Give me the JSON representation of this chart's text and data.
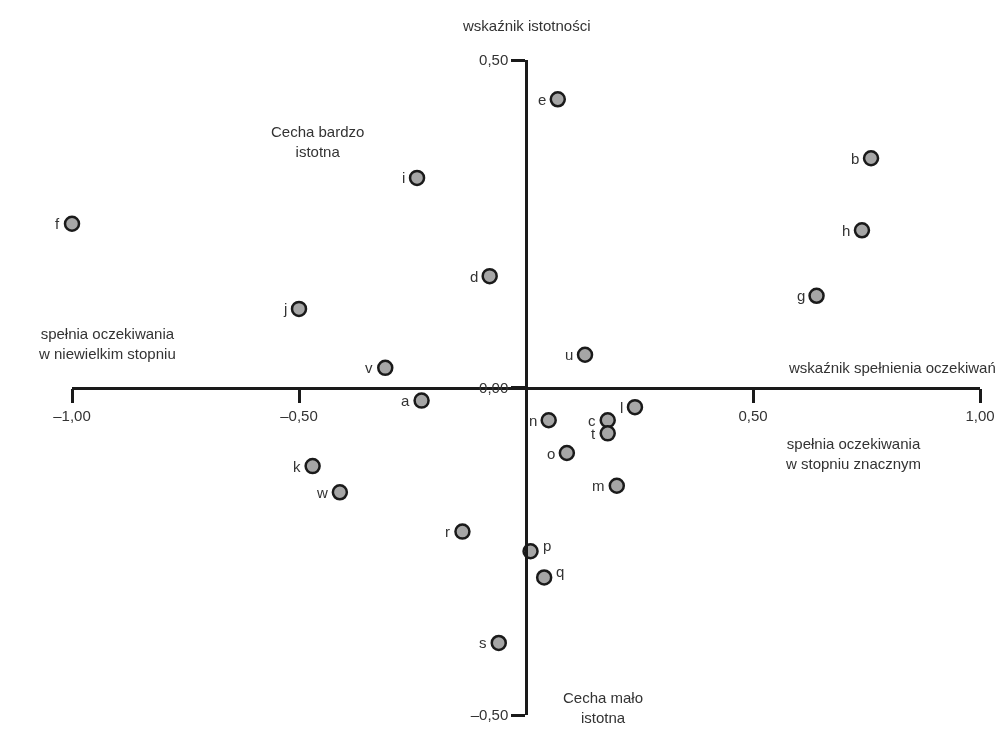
{
  "chart_data": {
    "type": "scatter",
    "xlabel": "wskaźnik spełnienia oczekiwań",
    "ylabel": "wskaźnik istotności",
    "annotations": [
      "Cecha bardzo\nistotna",
      "spełnia oczekiwania\nw niewielkim stopniu",
      "spełnia oczekiwania\nw stopniu znacznym",
      "Cecha mało\nistotna",
      {
        "text": "e",
        "x": 0.07,
        "y": 0.44
      },
      {
        "text": "b",
        "x": 0.76,
        "y": 0.35
      },
      {
        "text": "h",
        "x": 0.74,
        "y": 0.24
      },
      {
        "text": "g",
        "x": 0.64,
        "y": 0.14
      },
      {
        "text": "i",
        "x": -0.24,
        "y": 0.32
      },
      {
        "text": "f",
        "x": -1.0,
        "y": 0.25
      },
      {
        "text": "d",
        "x": -0.08,
        "y": 0.17
      },
      {
        "text": "j",
        "x": -0.5,
        "y": 0.12
      },
      {
        "text": "u",
        "x": 0.13,
        "y": 0.05
      },
      {
        "text": "v",
        "x": -0.31,
        "y": 0.03
      },
      {
        "text": "a",
        "x": -0.23,
        "y": -0.02
      },
      {
        "text": "n",
        "x": 0.05,
        "y": -0.05
      },
      {
        "text": "c",
        "x": 0.18,
        "y": -0.05
      },
      {
        "text": "l",
        "x": 0.24,
        "y": -0.03
      },
      {
        "text": "t",
        "x": 0.18,
        "y": -0.07
      },
      {
        "text": "o",
        "x": 0.09,
        "y": -0.1
      },
      {
        "text": "m",
        "x": 0.2,
        "y": -0.15
      },
      {
        "text": "k",
        "x": -0.47,
        "y": -0.12
      },
      {
        "text": "w",
        "x": -0.41,
        "y": -0.16
      },
      {
        "text": "r",
        "x": -0.14,
        "y": -0.22
      },
      {
        "text": "p",
        "x": 0.01,
        "y": -0.25
      },
      {
        "text": "q",
        "x": 0.04,
        "y": -0.29
      },
      {
        "text": "s",
        "x": -0.06,
        "y": -0.39
      }
    ],
    "xlim": [
      -1,
      1
    ],
    "ylim": [
      -0.5,
      0.5
    ],
    "xticks": [
      {
        "value": -1,
        "label": "–1,00"
      },
      {
        "value": -0.5,
        "label": "–0,50"
      },
      {
        "value": 0.5,
        "label": "0,50"
      },
      {
        "value": 1,
        "label": "1,00"
      }
    ],
    "yticks": [
      {
        "value": -0.5,
        "label": "–0,50"
      },
      {
        "value": 0,
        "label": "0,00"
      },
      {
        "value": 0.5,
        "label": "0,50"
      }
    ],
    "marker": "circle",
    "series": [
      {
        "color": "#a6a6a6",
        "x": [
          0.07,
          0.76,
          0.74,
          0.64,
          -0.24,
          -1.0,
          -0.08,
          -0.5,
          0.13,
          -0.31,
          -0.23,
          0.05,
          0.18,
          0.24,
          0.18,
          0.09,
          0.2,
          -0.47,
          -0.41,
          -0.14,
          0.01,
          0.04,
          -0.06
        ],
        "values": [
          0.44,
          0.35,
          0.24,
          0.14,
          0.32,
          0.25,
          0.17,
          0.12,
          0.05,
          0.03,
          -0.02,
          -0.05,
          -0.05,
          -0.03,
          -0.07,
          -0.1,
          -0.15,
          -0.12,
          -0.16,
          -0.22,
          -0.25,
          -0.29,
          -0.39
        ]
      }
    ]
  }
}
